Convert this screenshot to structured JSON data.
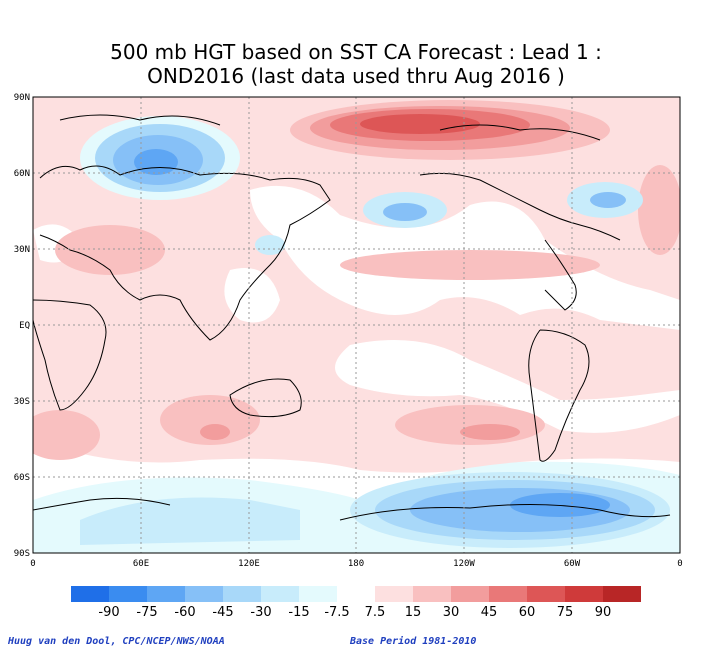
{
  "title": {
    "line1": "500 mb HGT based on SST CA Forecast : Lead 1 :",
    "line2": "OND2016 (last data used thru Aug 2016 )"
  },
  "axes": {
    "lat_labels": [
      "90N",
      "60N",
      "30N",
      "EQ",
      "30S",
      "60S",
      "90S"
    ],
    "lon_labels": [
      "0",
      "60E",
      "120E",
      "180",
      "120W",
      "60W",
      "0"
    ]
  },
  "legend": {
    "values": [
      "-90",
      "-75",
      "-60",
      "-45",
      "-30",
      "-15",
      "-7.5",
      "7.5",
      "15",
      "30",
      "45",
      "60",
      "75",
      "90"
    ],
    "colors": [
      "#1f6fe8",
      "#3a8cf0",
      "#5ea6f4",
      "#86c0f7",
      "#a8d8f9",
      "#c8ecfb",
      "#e4fafd",
      "#ffffff",
      "#fde0e0",
      "#f9c0c0",
      "#f29d9d",
      "#e97878",
      "#dd5656",
      "#cf3a3a",
      "#b82626"
    ]
  },
  "footer": {
    "credit": "Huug van den Dool, CPC/NCEP/NWS/NOAA",
    "base_period": "Base Period 1981-2010"
  }
}
